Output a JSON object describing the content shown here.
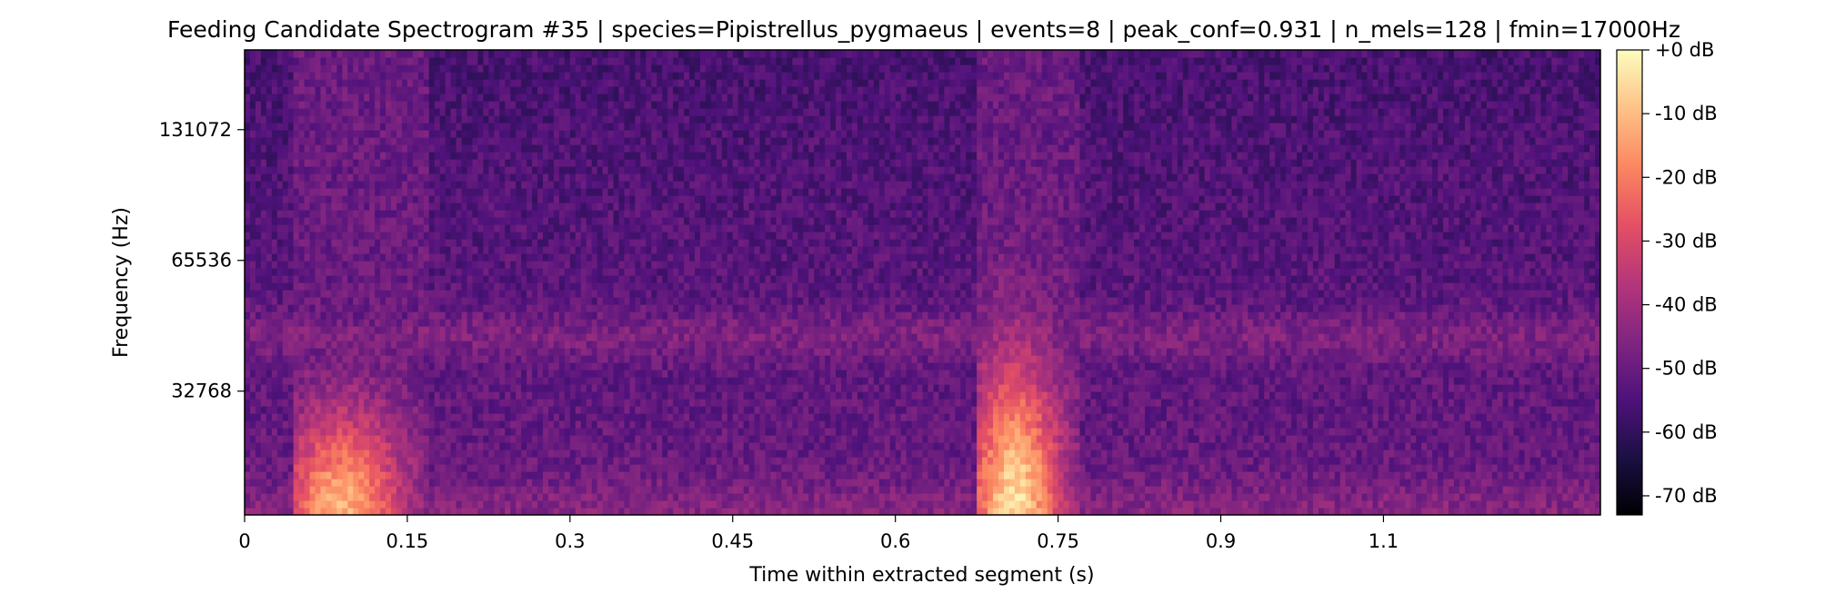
{
  "chart_data": {
    "type": "heatmap",
    "title": "Feeding Candidate Spectrogram #35 | species=Pipistrellus_pygmaeus | events=8 | peak_conf=0.931 | n_mels=128 | fmin=17000Hz",
    "xlabel": "Time within extracted segment (s)",
    "ylabel": "Frequency (Hz)",
    "x_scale": "linear",
    "y_scale": "log2",
    "xlim": [
      0,
      1.25
    ],
    "ylim": [
      17000,
      200000
    ],
    "x_ticks": [
      0,
      0.15,
      0.3,
      0.45,
      0.6,
      0.75,
      0.9,
      1.05
    ],
    "x_tick_labels": [
      "0",
      "0.15",
      "0.3",
      "0.45",
      "0.6",
      "0.75",
      "0.9",
      "1.1"
    ],
    "y_ticks": [
      32768,
      65536,
      131072
    ],
    "y_tick_labels": [
      "32768",
      "65536",
      "131072"
    ],
    "colormap": "magma",
    "colorbar": {
      "range": [
        -73,
        0
      ],
      "ticks": [
        0,
        -10,
        -20,
        -30,
        -40,
        -50,
        -60,
        -70
      ],
      "tick_labels": [
        "+0 dB",
        "-10 dB",
        "-20 dB",
        "-30 dB",
        "-40 dB",
        "-50 dB",
        "-60 dB",
        "-70 dB"
      ]
    },
    "background_level_db": -50,
    "high_freq_level_db": -56,
    "events": [
      {
        "t_start": 0.045,
        "t_end": 0.17,
        "t_peak": 0.09,
        "f_low": 17000,
        "f_high": 28000,
        "peak_db": -12
      },
      {
        "t_start": 0.675,
        "t_end": 0.77,
        "t_peak": 0.71,
        "f_low": 17000,
        "f_high": 36000,
        "peak_db": -5
      }
    ],
    "grid": false,
    "legend": "none"
  },
  "colors": {
    "magma": [
      "#000004",
      "#1c1044",
      "#4f127b",
      "#812581",
      "#b5367a",
      "#e55064",
      "#fb8761",
      "#fec287",
      "#fcfdbf"
    ]
  }
}
